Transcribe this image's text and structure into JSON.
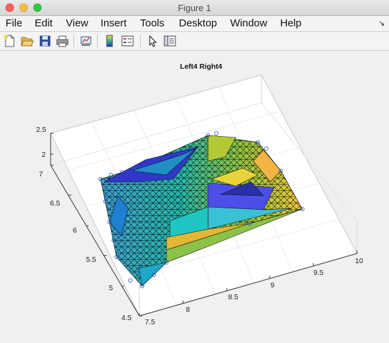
{
  "window": {
    "title": "Figure 1"
  },
  "menu": [
    "File",
    "Edit",
    "View",
    "Insert",
    "Tools",
    "Desktop",
    "Window",
    "Help"
  ],
  "toolbar": {
    "icons": [
      "new-figure-icon",
      "open-file-icon",
      "save-icon",
      "print-icon",
      "link-plot-icon",
      "insert-colorbar-icon",
      "insert-legend-icon",
      "select-arrow-icon",
      "property-inspector-icon"
    ]
  },
  "chart_data": {
    "type": "surface",
    "title": "Left4 Right4",
    "x_ticks": [
      "7.5",
      "8",
      "8.5",
      "9",
      "9.5",
      "10"
    ],
    "y_ticks": [
      "4.5",
      "5",
      "5.5",
      "6",
      "6.5",
      "7"
    ],
    "z_ticks": [
      "2",
      "2.5"
    ],
    "xlim": [
      7.5,
      10
    ],
    "ylim": [
      4.5,
      7
    ],
    "grid": true,
    "colormap": "parula"
  }
}
